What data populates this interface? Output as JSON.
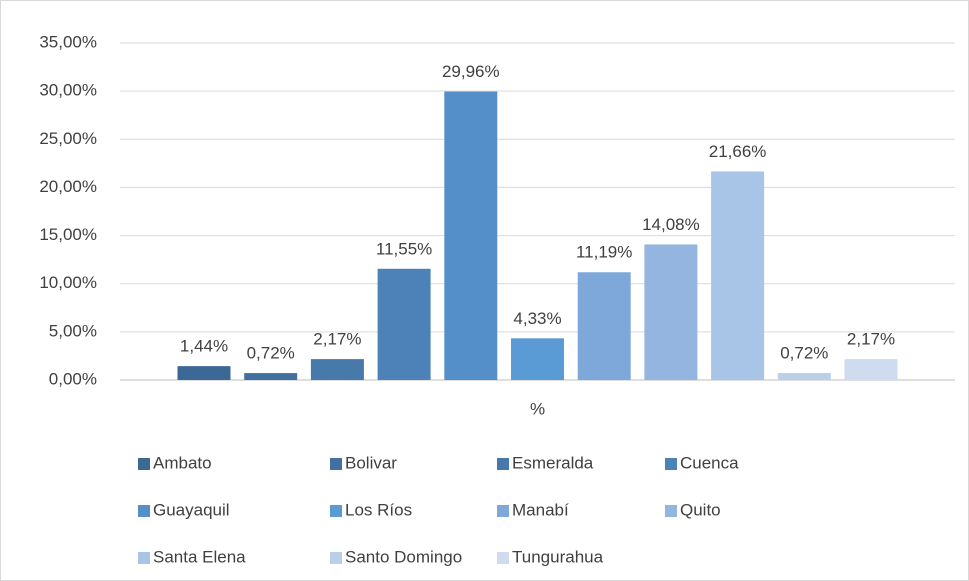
{
  "chart_data": {
    "type": "bar",
    "categories": [
      "%"
    ],
    "series": [
      {
        "name": "Ambato",
        "color": "#3c6895",
        "values": [
          1.44
        ],
        "value_labels": [
          "1,44%"
        ]
      },
      {
        "name": "Bolivar",
        "color": "#43719f",
        "values": [
          0.72
        ],
        "value_labels": [
          "0,72%"
        ]
      },
      {
        "name": "Esmeralda",
        "color": "#4879ab",
        "values": [
          2.17
        ],
        "value_labels": [
          "2,17%"
        ]
      },
      {
        "name": "Cuenca",
        "color": "#4c82b8",
        "values": [
          11.55
        ],
        "value_labels": [
          "11,55%"
        ]
      },
      {
        "name": "Guayaquil",
        "color": "#548fca",
        "values": [
          29.96
        ],
        "value_labels": [
          "29,96%"
        ]
      },
      {
        "name": "Los Ríos",
        "color": "#5b9bd5",
        "values": [
          4.33
        ],
        "value_labels": [
          "4,33%"
        ]
      },
      {
        "name": "Manabí",
        "color": "#7ea8da",
        "values": [
          11.19
        ],
        "value_labels": [
          "11,19%"
        ]
      },
      {
        "name": "Quito",
        "color": "#93b5df",
        "values": [
          14.08
        ],
        "value_labels": [
          "14,08%"
        ]
      },
      {
        "name": "Santa Elena",
        "color": "#a8c4e6",
        "values": [
          21.66
        ],
        "value_labels": [
          "21,66%"
        ]
      },
      {
        "name": "Santo Domingo",
        "color": "#bccfea",
        "values": [
          0.72
        ],
        "value_labels": [
          "0,72%"
        ]
      },
      {
        "name": "Tungurahua",
        "color": "#cfdbef",
        "values": [
          2.17
        ],
        "value_labels": [
          "2,17%"
        ]
      }
    ],
    "ylim": [
      0,
      35
    ],
    "yticks": [
      {
        "value": 0,
        "label": "0,00%"
      },
      {
        "value": 5,
        "label": "5,00%"
      },
      {
        "value": 10,
        "label": "10,00%"
      },
      {
        "value": 15,
        "label": "15,00%"
      },
      {
        "value": 20,
        "label": "20,00%"
      },
      {
        "value": 25,
        "label": "25,00%"
      },
      {
        "value": 30,
        "label": "30,00%"
      },
      {
        "value": 35,
        "label": "35,00%"
      }
    ],
    "grid": true,
    "legend": "bottom"
  }
}
